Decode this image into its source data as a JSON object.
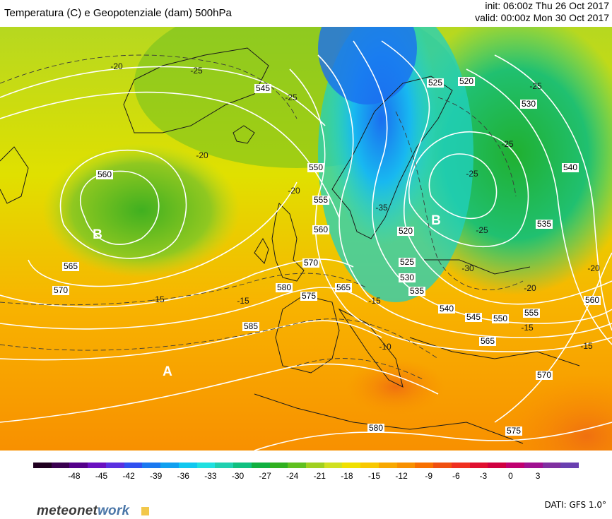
{
  "header": {
    "title": "Temperatura (C) e Geopotenziale (dam) 500hPa",
    "init": "init: 06:00z Thu 26 Oct 2017",
    "valid": "valid: 00:00z Mon 30 Oct 2017"
  },
  "map": {
    "pressure_centers": [
      {
        "label": "B",
        "kind": "low"
      },
      {
        "label": "B",
        "kind": "low"
      },
      {
        "label": "A",
        "kind": "high"
      }
    ],
    "geopotential_labels": [
      "560",
      "565",
      "570",
      "585",
      "545",
      "550",
      "555",
      "560",
      "570",
      "580",
      "575",
      "565",
      "520",
      "525",
      "530",
      "540",
      "535",
      "520",
      "525",
      "530",
      "535",
      "540",
      "545",
      "550",
      "555",
      "560",
      "565",
      "570",
      "580",
      "575"
    ],
    "temperature_labels": [
      "-20",
      "-25",
      "-20",
      "-25",
      "-20",
      "-15",
      "-15",
      "-15",
      "-10",
      "-25",
      "-35",
      "-30",
      "-25",
      "-20",
      "-25",
      "-20",
      "-25",
      "-15",
      "-15"
    ]
  },
  "legend": {
    "colors": [
      "#200020",
      "#3a0050",
      "#55008a",
      "#6a10c0",
      "#5a30e0",
      "#3050f0",
      "#1a78f0",
      "#10a0f0",
      "#10c8f0",
      "#20e0e0",
      "#20d0b0",
      "#10c080",
      "#10b040",
      "#30b020",
      "#60c020",
      "#a0d020",
      "#d0e020",
      "#f0e000",
      "#f8c800",
      "#f8a800",
      "#f89000",
      "#f87000",
      "#f05010",
      "#f03020",
      "#e01030",
      "#d00040",
      "#c00070",
      "#a01090",
      "#8030a0",
      "#6a40b0"
    ],
    "ticks": [
      "-48",
      "-45",
      "-42",
      "-39",
      "-36",
      "-33",
      "-30",
      "-27",
      "-24",
      "-21",
      "-18",
      "-15",
      "-12",
      "-9",
      "-6",
      "-3",
      "0",
      "3"
    ],
    "unit": ""
  },
  "footer": {
    "brand_main": "meteonet",
    "brand_accent": "work",
    "source": "DATI: GFS 1.0°"
  }
}
